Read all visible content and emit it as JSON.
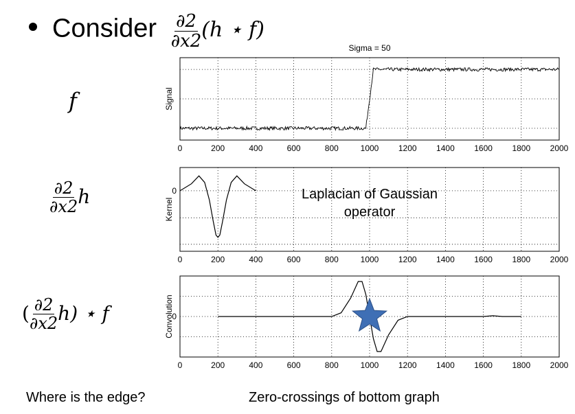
{
  "header": {
    "word": "Consider",
    "expr_num": "∂2",
    "expr_den": "∂x2",
    "expr_tail": "(h ⋆ f)"
  },
  "side_labels": {
    "signal": "f",
    "kernel_num": "∂2",
    "kernel_den": "∂x2",
    "kernel_tail": "h",
    "conv_open": "(",
    "conv_num": "∂2",
    "conv_den": "∂x2",
    "conv_tail": "h) ⋆ f"
  },
  "annotation": {
    "line1": "Laplacian of Gaussian",
    "line2": "operator"
  },
  "footer": {
    "question": "Where is the edge?",
    "answer": "Zero-crossings of bottom graph"
  },
  "marker": {
    "type": "star",
    "color": "#3f6fb5",
    "at_x": 1000,
    "at_y": 0
  },
  "chart_data": [
    {
      "type": "line",
      "title": "Sigma = 50",
      "ylabel": "Signal",
      "xlim": [
        0,
        2000
      ],
      "ylim": [
        -0.2,
        1.2
      ],
      "ytick_lines": [
        0,
        0.5,
        1
      ],
      "xticks": [
        "0",
        "200",
        "400",
        "600",
        "800",
        "1000",
        "1200",
        "1400",
        "1600",
        "1800",
        "2000"
      ],
      "grid": true,
      "series": [
        {
          "x": [
            0,
            980,
            1020,
            2000
          ],
          "y": [
            0,
            0,
            1,
            1
          ]
        }
      ]
    },
    {
      "type": "line",
      "ylabel": "Kernel",
      "xlim": [
        0,
        2000
      ],
      "ylim": [
        -1.3,
        0.5
      ],
      "ytick_lines": [
        0,
        -0.58,
        -1.15
      ],
      "yticks": [
        "0"
      ],
      "xticks": [
        "0",
        "200",
        "400",
        "600",
        "800",
        "1000",
        "1200",
        "1400",
        "1600",
        "1800",
        "2000"
      ],
      "grid": true,
      "series": [
        {
          "x": [
            0,
            60,
            100,
            130,
            155,
            175,
            190,
            200,
            210,
            225,
            245,
            270,
            300,
            340,
            400
          ],
          "y": [
            0,
            0.15,
            0.32,
            0.18,
            -0.2,
            -0.65,
            -0.95,
            -1.0,
            -0.95,
            -0.65,
            -0.2,
            0.18,
            0.32,
            0.15,
            0
          ]
        }
      ]
    },
    {
      "type": "line",
      "ylabel": "Convolution",
      "xlim": [
        0,
        2000
      ],
      "ylim": [
        -1.1,
        1.1
      ],
      "ytick_lines": [
        0.55,
        0,
        -0.55
      ],
      "yticks": [
        "0"
      ],
      "xticks": [
        "0",
        "200",
        "400",
        "600",
        "800",
        "1000",
        "1200",
        "1400",
        "1600",
        "1800",
        "2000"
      ],
      "grid": true,
      "series": [
        {
          "x": [
            200,
            400,
            800,
            850,
            900,
            940,
            960,
            980,
            1000,
            1020,
            1040,
            1060,
            1100,
            1150,
            1200,
            1400,
            1600,
            1650,
            1700,
            1800
          ],
          "y": [
            0,
            0,
            0,
            0.1,
            0.5,
            0.95,
            0.95,
            0.6,
            0,
            -0.6,
            -0.95,
            -0.95,
            -0.5,
            -0.1,
            0,
            0,
            0,
            0.02,
            0,
            0
          ]
        }
      ]
    }
  ]
}
